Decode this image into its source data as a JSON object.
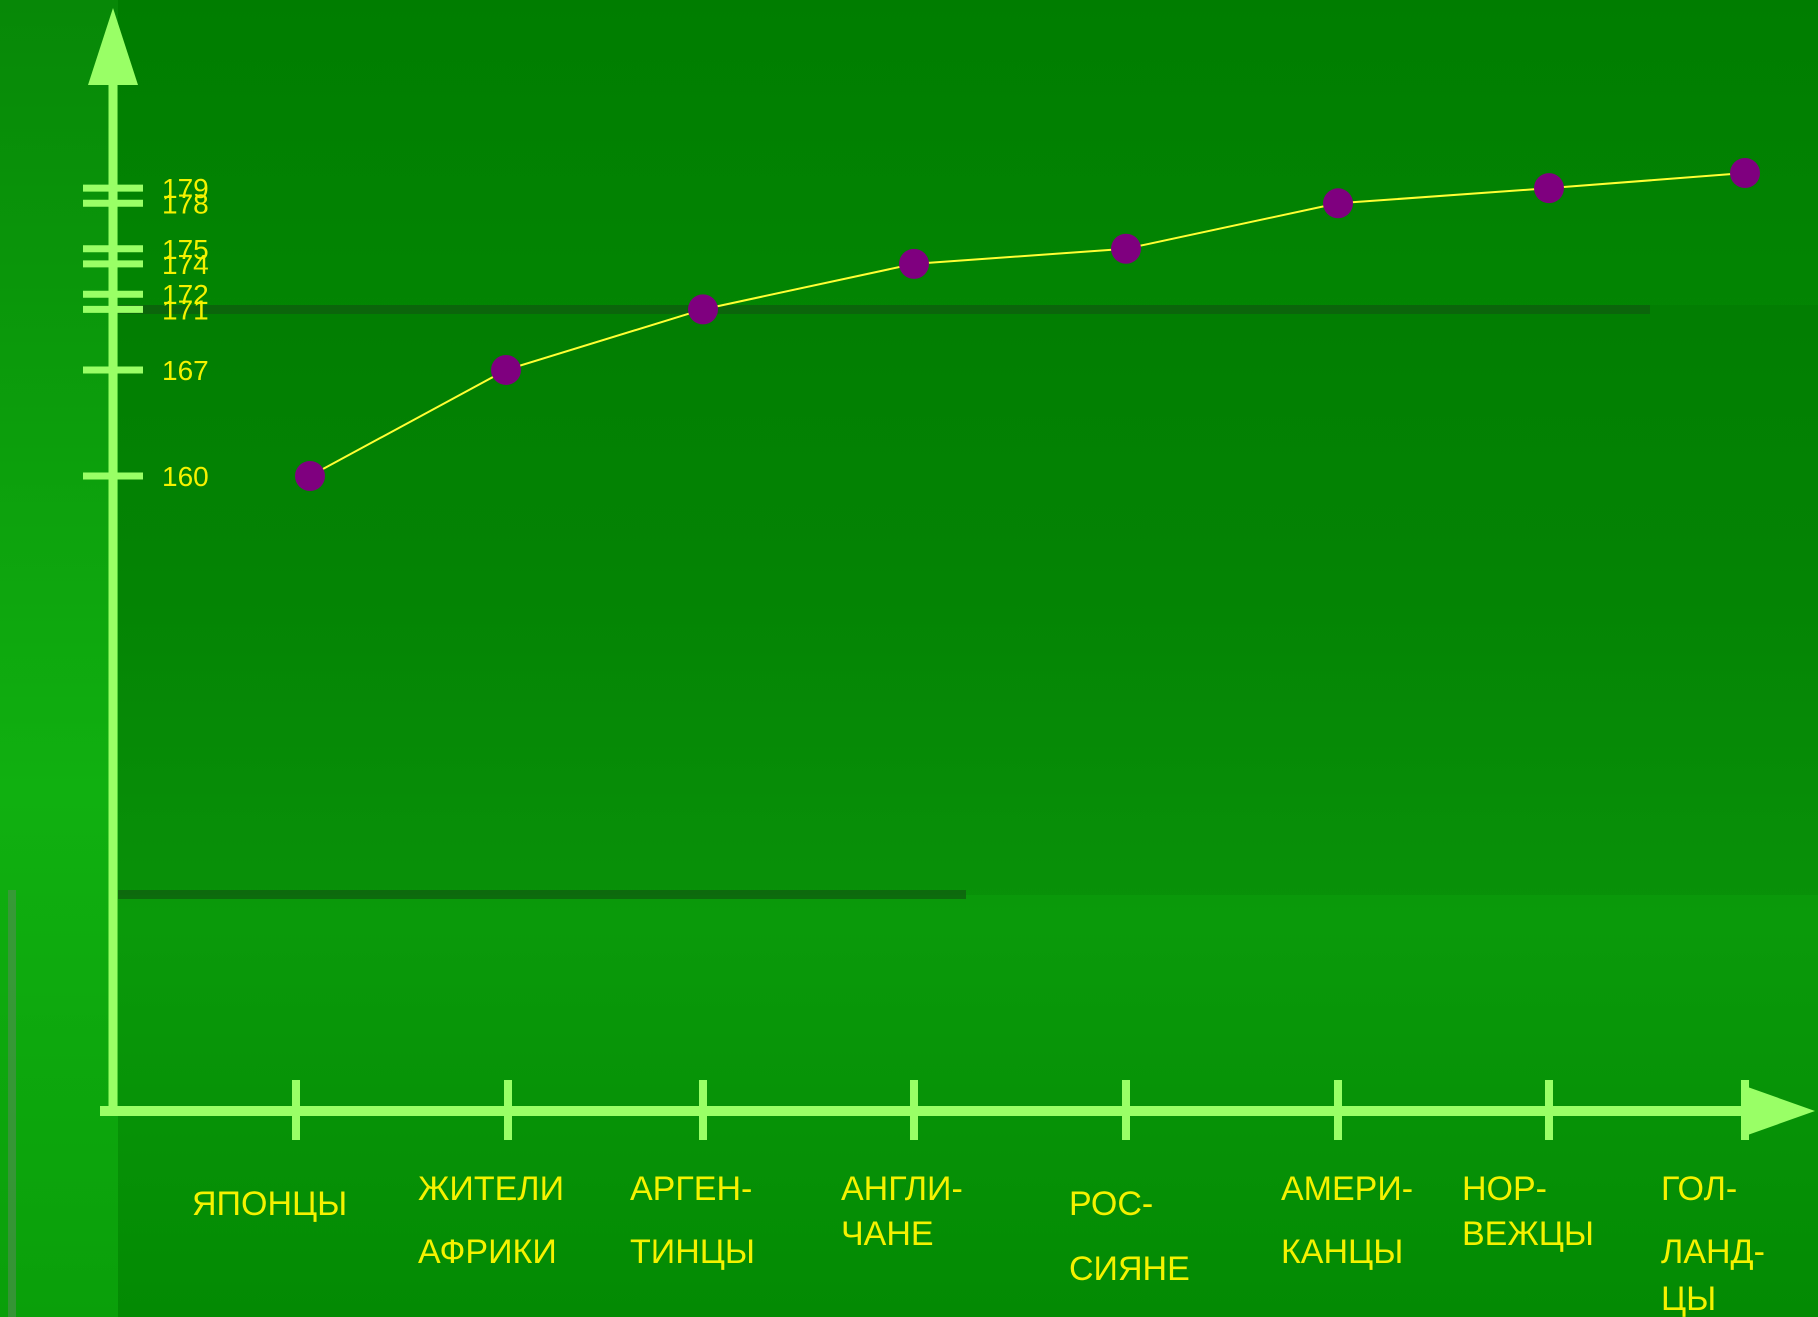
{
  "chart_data": {
    "type": "line",
    "categories": [
      [
        "ЯПОНЦЫ"
      ],
      [
        "ЖИТЕЛИ",
        "АФРИКИ"
      ],
      [
        "АРГЕН-",
        "ТИНЦЫ"
      ],
      [
        "АНГЛИ-",
        "ЧАНЕ"
      ],
      [
        "РОС-",
        "СИЯНЕ"
      ],
      [
        "АМЕРИ-",
        "КАНЦЫ"
      ],
      [
        "НОР-",
        "ВЕЖЦЫ"
      ],
      [
        "ГОЛ-",
        "ЛАНД-",
        "ЦЫ"
      ]
    ],
    "values": [
      160,
      167,
      171,
      174,
      175,
      178,
      179,
      180
    ],
    "y_ticks": [
      160,
      167,
      171,
      172,
      174,
      175,
      178,
      179
    ],
    "title": "",
    "xlabel": "",
    "ylabel": "",
    "grid": false
  },
  "colors": {
    "axis": "#99ff66",
    "line": "#ffff33",
    "point": "#7f007f",
    "label": "#f5f200"
  }
}
